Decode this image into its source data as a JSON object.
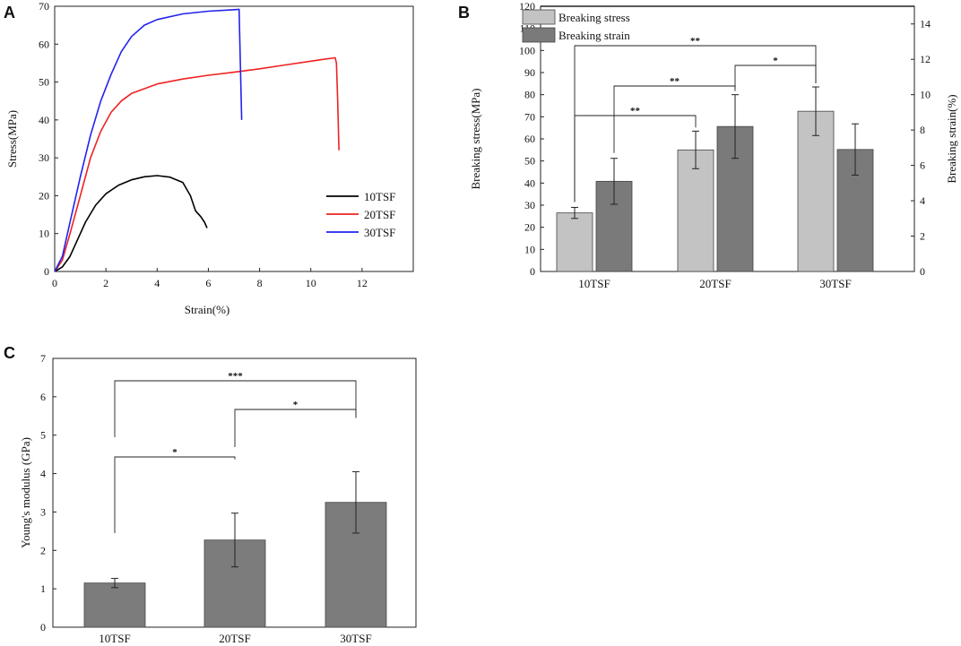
{
  "panels": {
    "a": "A",
    "b": "B",
    "c": "C"
  },
  "colors": {
    "s10": "#000000",
    "s20": "#ee2222",
    "s30": "#2222ee",
    "stress_bar": "#c3c3c3",
    "strain_bar": "#7a7a7a",
    "modulus_bar": "#7c7c7c"
  },
  "chart_data": [
    {
      "type": "line",
      "xlabel": "Strain(%)",
      "ylabel": "Stress(MPa)",
      "xlim": [
        0,
        14
      ],
      "ylim": [
        0,
        70
      ],
      "xticks": [
        0,
        2,
        4,
        6,
        8,
        10,
        12
      ],
      "yticks": [
        0,
        10,
        20,
        30,
        40,
        50,
        60,
        70
      ],
      "legend_position": "center-right",
      "series": [
        {
          "name": "10TSF",
          "x": [
            0,
            0.3,
            0.6,
            0.9,
            1.2,
            1.6,
            2.0,
            2.5,
            3.0,
            3.5,
            4.0,
            4.5,
            5.0,
            5.3,
            5.5,
            5.7,
            5.85,
            5.95
          ],
          "y": [
            0,
            1.2,
            4.0,
            8.5,
            13,
            17.5,
            20.5,
            22.8,
            24.2,
            25.0,
            25.3,
            24.9,
            23.5,
            20,
            16,
            14.5,
            13,
            11.5
          ]
        },
        {
          "name": "20TSF",
          "x": [
            0,
            0.3,
            0.6,
            1.0,
            1.4,
            1.8,
            2.2,
            2.6,
            3.0,
            4.0,
            5.0,
            6.0,
            7.0,
            8.0,
            9.0,
            10.0,
            10.5,
            10.95,
            11.0,
            11.05,
            11.1
          ],
          "y": [
            0,
            3,
            10,
            20,
            30,
            37,
            42,
            45,
            47,
            49.5,
            50.8,
            51.8,
            52.6,
            53.5,
            54.5,
            55.5,
            56,
            56.4,
            55,
            45,
            32
          ]
        },
        {
          "name": "30TSF",
          "x": [
            0,
            0.3,
            0.6,
            1.0,
            1.4,
            1.8,
            2.2,
            2.6,
            3.0,
            3.5,
            4.0,
            5.0,
            6.0,
            6.8,
            7.2,
            7.25,
            7.3
          ],
          "y": [
            0,
            4,
            13,
            25,
            36,
            45,
            52,
            58,
            62,
            65,
            66.5,
            68,
            68.7,
            69,
            69.2,
            55,
            40
          ]
        }
      ]
    },
    {
      "type": "bar",
      "categories": [
        "10TSF",
        "20TSF",
        "30TSF"
      ],
      "ylabel": "Breaking stress(MPa)",
      "y2label": "Breaking strain(%)",
      "ylim": [
        0,
        120
      ],
      "y2lim": [
        0,
        15
      ],
      "yticks": [
        0,
        10,
        20,
        30,
        40,
        50,
        60,
        70,
        80,
        90,
        100,
        110,
        120
      ],
      "y2ticks": [
        0,
        2,
        4,
        6,
        8,
        10,
        12,
        14
      ],
      "legend_position": "top-left",
      "series": [
        {
          "name": "Breaking stress",
          "axis": "left",
          "values": [
            26.5,
            55,
            72.5
          ],
          "errors": [
            2.5,
            8.5,
            11
          ]
        },
        {
          "name": "Breaking strain",
          "axis": "right",
          "values": [
            5.1,
            8.2,
            6.9
          ],
          "errors": [
            1.3,
            1.8,
            1.45
          ]
        }
      ],
      "significance": [
        {
          "label": "**",
          "from": "10TSF stress",
          "to": "30TSF stress"
        },
        {
          "label": "*",
          "from": "20TSF strain",
          "to": "30TSF stress"
        },
        {
          "label": "**",
          "from": "10TSF strain",
          "to": "20TSF strain"
        },
        {
          "label": "**",
          "from": "10TSF stress",
          "to": "20TSF stress"
        }
      ]
    },
    {
      "type": "bar",
      "categories": [
        "10TSF",
        "20TSF",
        "30TSF"
      ],
      "ylabel": "Young's modulus (GPa)",
      "ylim": [
        0,
        7
      ],
      "yticks": [
        0,
        1,
        2,
        3,
        4,
        5,
        6,
        7
      ],
      "series": [
        {
          "name": "Young's modulus",
          "values": [
            1.15,
            2.27,
            3.25
          ],
          "errors": [
            0.12,
            0.7,
            0.8
          ]
        }
      ],
      "significance": [
        {
          "label": "***",
          "from": "10TSF",
          "to": "30TSF"
        },
        {
          "label": "*",
          "from": "20TSF",
          "to": "30TSF"
        },
        {
          "label": "*",
          "from": "10TSF",
          "to": "20TSF"
        }
      ]
    }
  ]
}
